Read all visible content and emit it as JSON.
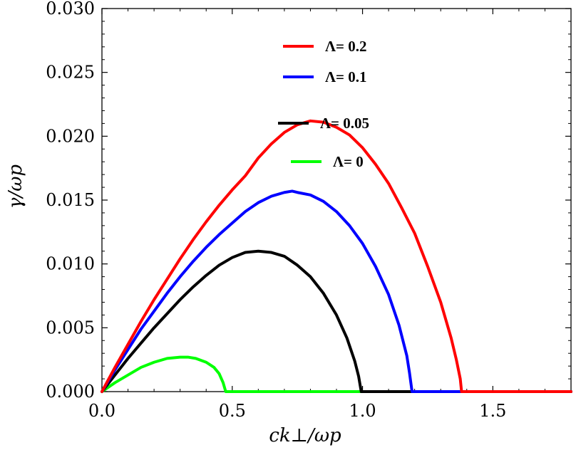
{
  "chart_data": {
    "type": "line",
    "xlabel": "ck⊥/ωp",
    "ylabel": "γ/ωp",
    "xlim": [
      0,
      1.8
    ],
    "ylim": [
      0,
      0.03
    ],
    "xticks": [
      "0.0",
      "0.5",
      "1.0",
      "1.5"
    ],
    "yticks": [
      "0.000",
      "0.005",
      "0.010",
      "0.015",
      "0.020",
      "0.025",
      "0.030"
    ],
    "grid": false,
    "legend_position": "top-center",
    "series": [
      {
        "name": "Λ= 0.2",
        "color": "#ff0000",
        "points": [
          [
            0,
            0
          ],
          [
            0.05,
            0.0019
          ],
          [
            0.1,
            0.0037
          ],
          [
            0.15,
            0.0055
          ],
          [
            0.2,
            0.0072
          ],
          [
            0.25,
            0.0088
          ],
          [
            0.3,
            0.0104
          ],
          [
            0.35,
            0.0119
          ],
          [
            0.4,
            0.0133
          ],
          [
            0.45,
            0.0146
          ],
          [
            0.5,
            0.0158
          ],
          [
            0.55,
            0.0169
          ],
          [
            0.6,
            0.0183
          ],
          [
            0.65,
            0.0194
          ],
          [
            0.7,
            0.0203
          ],
          [
            0.75,
            0.0209
          ],
          [
            0.8,
            0.0212
          ],
          [
            0.85,
            0.0211
          ],
          [
            0.9,
            0.0207
          ],
          [
            0.95,
            0.0201
          ],
          [
            1.0,
            0.0191
          ],
          [
            1.05,
            0.0178
          ],
          [
            1.1,
            0.0163
          ],
          [
            1.15,
            0.0144
          ],
          [
            1.2,
            0.0124
          ],
          [
            1.25,
            0.0098
          ],
          [
            1.3,
            0.007
          ],
          [
            1.34,
            0.0042
          ],
          [
            1.36,
            0.0025
          ],
          [
            1.375,
            0.001
          ],
          [
            1.38,
            0.0
          ],
          [
            1.8,
            0.0
          ]
        ]
      },
      {
        "name": "Λ= 0.1",
        "color": "#0000ff",
        "points": [
          [
            0,
            0
          ],
          [
            0.05,
            0.0017
          ],
          [
            0.1,
            0.0033
          ],
          [
            0.15,
            0.0049
          ],
          [
            0.2,
            0.0063
          ],
          [
            0.25,
            0.0077
          ],
          [
            0.3,
            0.009
          ],
          [
            0.35,
            0.0102
          ],
          [
            0.4,
            0.0113
          ],
          [
            0.45,
            0.0123
          ],
          [
            0.5,
            0.0132
          ],
          [
            0.55,
            0.0141
          ],
          [
            0.6,
            0.0148
          ],
          [
            0.65,
            0.0153
          ],
          [
            0.7,
            0.0156
          ],
          [
            0.73,
            0.0157
          ],
          [
            0.75,
            0.0156
          ],
          [
            0.8,
            0.0154
          ],
          [
            0.85,
            0.0149
          ],
          [
            0.9,
            0.0141
          ],
          [
            0.95,
            0.013
          ],
          [
            1.0,
            0.0116
          ],
          [
            1.05,
            0.0098
          ],
          [
            1.1,
            0.0076
          ],
          [
            1.14,
            0.0052
          ],
          [
            1.17,
            0.0028
          ],
          [
            1.18,
            0.0015
          ],
          [
            1.19,
            0.0
          ],
          [
            1.8,
            0.0
          ]
        ]
      },
      {
        "name": "Λ= 0.05",
        "color": "#000000",
        "points": [
          [
            0,
            0
          ],
          [
            0.05,
            0.0013
          ],
          [
            0.1,
            0.0026
          ],
          [
            0.15,
            0.0038
          ],
          [
            0.2,
            0.005
          ],
          [
            0.25,
            0.0061
          ],
          [
            0.3,
            0.0072
          ],
          [
            0.35,
            0.0082
          ],
          [
            0.4,
            0.0091
          ],
          [
            0.45,
            0.0099
          ],
          [
            0.5,
            0.0105
          ],
          [
            0.55,
            0.0109
          ],
          [
            0.6,
            0.011
          ],
          [
            0.65,
            0.0109
          ],
          [
            0.7,
            0.0106
          ],
          [
            0.75,
            0.0099
          ],
          [
            0.8,
            0.009
          ],
          [
            0.85,
            0.0077
          ],
          [
            0.9,
            0.006
          ],
          [
            0.94,
            0.0042
          ],
          [
            0.97,
            0.0024
          ],
          [
            0.985,
            0.0012
          ],
          [
            0.995,
            0.0
          ],
          [
            1.8,
            0.0
          ]
        ]
      },
      {
        "name": "Λ= 0",
        "color": "#00ff00",
        "points": [
          [
            0,
            0
          ],
          [
            0.05,
            0.0007
          ],
          [
            0.1,
            0.0013
          ],
          [
            0.15,
            0.0019
          ],
          [
            0.2,
            0.0023
          ],
          [
            0.25,
            0.0026
          ],
          [
            0.3,
            0.0027
          ],
          [
            0.33,
            0.0027
          ],
          [
            0.36,
            0.0026
          ],
          [
            0.4,
            0.0023
          ],
          [
            0.43,
            0.0019
          ],
          [
            0.45,
            0.0014
          ],
          [
            0.465,
            0.0007
          ],
          [
            0.475,
            0.0
          ],
          [
            1.8,
            0.0
          ]
        ]
      }
    ]
  }
}
